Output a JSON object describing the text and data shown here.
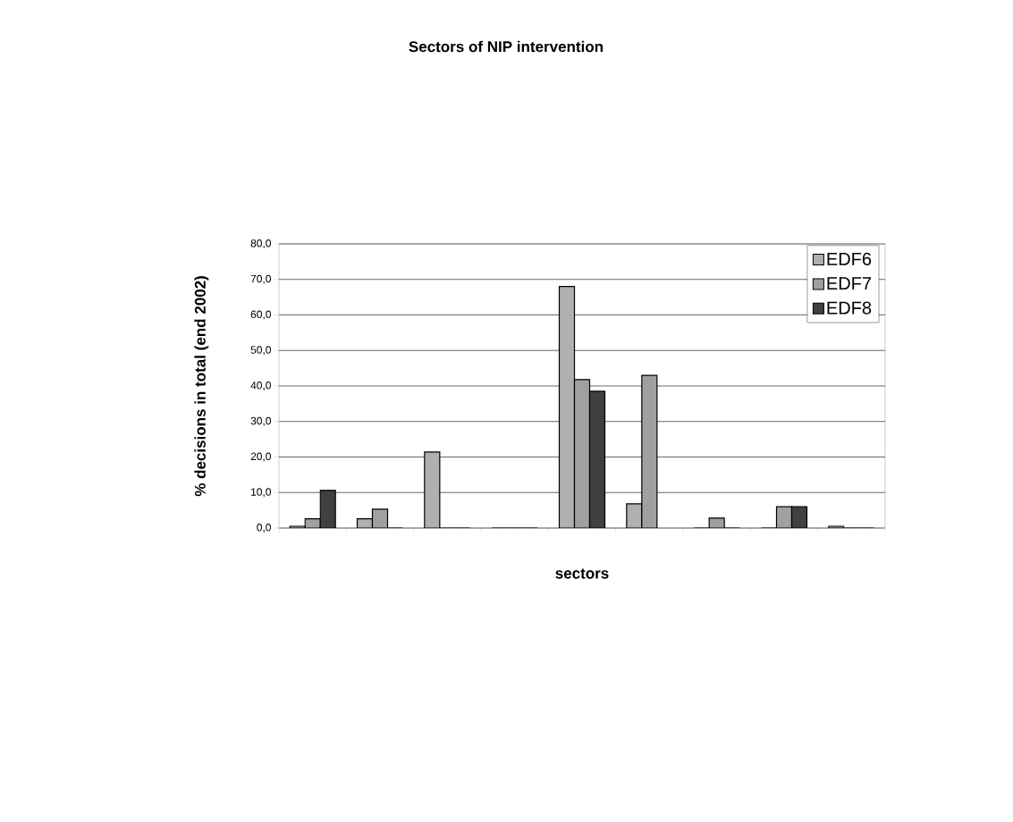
{
  "chart_data": {
    "type": "bar",
    "title": "Sectors of NIP intervention",
    "xlabel": "sectors",
    "ylabel": "% decisions in total (end 2002)",
    "categories": [
      null,
      null,
      null,
      null,
      null,
      null,
      null,
      null,
      null
    ],
    "series": [
      {
        "name": "EDF6",
        "color": "#b0b0b0",
        "values": [
          0.5,
          2.6,
          21.4,
          0,
          68.0,
          6.8,
          0,
          0,
          0.5
        ]
      },
      {
        "name": "EDF7",
        "color": "#a0a0a0",
        "values": [
          2.6,
          5.3,
          0,
          0,
          41.8,
          43.0,
          2.8,
          6.0,
          0
        ]
      },
      {
        "name": "EDF8",
        "color": "#404040",
        "values": [
          10.6,
          0,
          0,
          0,
          38.5,
          null,
          0,
          6.0,
          0
        ]
      }
    ],
    "ylim": [
      0,
      80
    ],
    "yticks": [
      {
        "value": 0,
        "label": "0,0"
      },
      {
        "value": 10,
        "label": "10,0"
      },
      {
        "value": 20,
        "label": "20,0"
      },
      {
        "value": 30,
        "label": "30,0"
      },
      {
        "value": 40,
        "label": "40,0"
      },
      {
        "value": 50,
        "label": "50,0"
      },
      {
        "value": 60,
        "label": "60,0"
      },
      {
        "value": 70,
        "label": "70,0"
      },
      {
        "value": 80,
        "label": "80,0"
      }
    ],
    "grid": "y",
    "legend": "top right"
  }
}
